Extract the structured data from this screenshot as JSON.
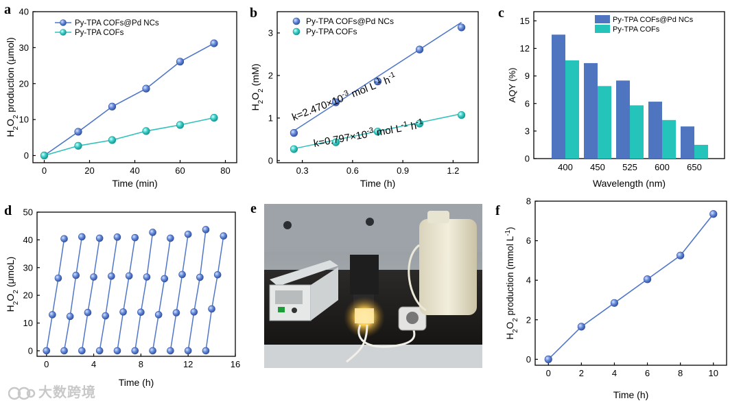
{
  "colors": {
    "pd": "#4f76c9",
    "pdDark": "#3150a0",
    "cof": "#2ec1bc",
    "cofDark": "#179a96",
    "bar_pd": "#4f74c0",
    "bar_cof": "#25c4bb"
  },
  "panels": {
    "a": {
      "letter": "a",
      "xlabel": "Time (min)",
      "ylabel_parts": [
        "H",
        "2",
        "O",
        "2",
        " production (μmol)"
      ],
      "xticks": [
        "0",
        "20",
        "40",
        "60",
        "80"
      ],
      "yticks": [
        "0",
        "10",
        "20",
        "30",
        "40"
      ],
      "xlim": [
        -5,
        85
      ],
      "ylim": [
        -2,
        40
      ],
      "legend": [
        "Py-TPA COFs@Pd NCs",
        "Py-TPA COFs"
      ]
    },
    "b": {
      "letter": "b",
      "xlabel": "Time (h)",
      "ylabel_parts": [
        "H",
        "2",
        "O",
        "2",
        " (mM)"
      ],
      "xticks": [
        "0.3",
        "0.6",
        "0.9",
        "1.2"
      ],
      "yticks": [
        "0",
        "1",
        "2",
        "3"
      ],
      "xlim": [
        0.15,
        1.35
      ],
      "ylim": [
        -0.05,
        3.5
      ],
      "legend": [
        "Py-TPA COFs@Pd NCs",
        "Py-TPA COFs"
      ],
      "ann1": {
        "pre": "k=2.470",
        "times": "×",
        "mid": "10",
        "exp": "-3",
        "unit": " mol L",
        "exp2": "-1",
        "post": " h",
        "exp3": "-1"
      },
      "ann2": {
        "pre": "k=0.797",
        "times": "×",
        "mid": "10",
        "exp": "-3",
        "unit": " mol L",
        "exp2": "-1",
        "post": " h",
        "exp3": "-1"
      }
    },
    "c": {
      "letter": "c",
      "xlabel": "Wavelength (nm)",
      "ylabel": "AQY (%)",
      "yticks": [
        "0",
        "3",
        "6",
        "9",
        "12",
        "15"
      ],
      "ylim": [
        0,
        16
      ],
      "legend": [
        "Py-TPA COFs@Pd NCs",
        "Py-TPA COFs"
      ]
    },
    "d": {
      "letter": "d",
      "xlabel": "Time (h)",
      "ylabel_parts": [
        "H",
        "2",
        "O",
        "2",
        " (μmoL)"
      ],
      "xticks": [
        "0",
        "4",
        "8",
        "12",
        "16"
      ],
      "yticks": [
        "0",
        "10",
        "20",
        "30",
        "40",
        "50"
      ],
      "xlim": [
        -0.8,
        16
      ],
      "ylim": [
        -2,
        50
      ]
    },
    "e": {
      "letter": "e"
    },
    "f": {
      "letter": "f",
      "xlabel": "Time (h)",
      "ylabel_parts": [
        "H",
        "2",
        "O",
        "2",
        " production (mmol L",
        "-1",
        ")"
      ],
      "xticks": [
        "0",
        "2",
        "4",
        "6",
        "8",
        "10"
      ],
      "yticks": [
        "0",
        "2",
        "4",
        "6",
        "8"
      ],
      "xlim": [
        -0.8,
        10.8
      ],
      "ylim": [
        -0.3,
        8
      ]
    }
  },
  "watermark": "大数跨境",
  "chart_data": [
    {
      "panel": "a",
      "type": "line",
      "title": "",
      "xlabel": "Time (min)",
      "ylabel": "H2O2 production (μmol)",
      "x": [
        0,
        15,
        30,
        45,
        60,
        75
      ],
      "series": [
        {
          "name": "Py-TPA COFs@Pd NCs",
          "values": [
            0,
            6.6,
            13.6,
            18.6,
            26.1,
            31.2
          ]
        },
        {
          "name": "Py-TPA COFs",
          "values": [
            0,
            2.7,
            4.3,
            6.8,
            8.5,
            10.5
          ]
        }
      ],
      "xlim": [
        -5,
        85
      ],
      "ylim": [
        -2,
        40
      ]
    },
    {
      "panel": "b",
      "type": "scatter",
      "title": "",
      "xlabel": "Time (h)",
      "ylabel": "H2O2 (mM)",
      "x": [
        0.25,
        0.5,
        0.75,
        1.0,
        1.25
      ],
      "series": [
        {
          "name": "Py-TPA COFs@Pd NCs",
          "values": [
            0.65,
            1.37,
            1.86,
            2.61,
            3.13
          ],
          "fit": [
            [
              0.25,
              0.7
            ],
            [
              1.25,
              3.25
            ]
          ]
        },
        {
          "name": "Py-TPA COFs",
          "values": [
            0.27,
            0.43,
            0.68,
            0.87,
            1.07
          ],
          "fit": [
            [
              0.25,
              0.28
            ],
            [
              1.25,
              1.1
            ]
          ]
        }
      ],
      "xlim": [
        0.15,
        1.35
      ],
      "ylim": [
        -0.05,
        3.5
      ]
    },
    {
      "panel": "c",
      "type": "bar",
      "title": "",
      "xlabel": "Wavelength (nm)",
      "ylabel": "AQY (%)",
      "categories": [
        "400",
        "450",
        "525",
        "600",
        "650"
      ],
      "series": [
        {
          "name": "Py-TPA COFs@Pd NCs",
          "values": [
            13.5,
            10.4,
            8.5,
            6.2,
            3.5
          ]
        },
        {
          "name": "Py-TPA COFs",
          "values": [
            10.7,
            7.9,
            5.8,
            4.2,
            1.5
          ]
        }
      ],
      "ylim": [
        0,
        16
      ]
    },
    {
      "panel": "d",
      "type": "line",
      "title": "",
      "xlabel": "Time (h)",
      "ylabel": "H2O2 (μmoL)",
      "cycles": [
        {
          "x": [
            0,
            0.5,
            1.0,
            1.5
          ],
          "y": [
            0,
            13.0,
            26.2,
            40.4
          ]
        },
        {
          "x": [
            1.5,
            2.0,
            2.5,
            3.0
          ],
          "y": [
            0,
            12.4,
            27.2,
            41.1
          ]
        },
        {
          "x": [
            3.0,
            3.5,
            4.0,
            4.5
          ],
          "y": [
            0,
            13.8,
            26.6,
            40.6
          ]
        },
        {
          "x": [
            4.5,
            5.0,
            5.5,
            6.0
          ],
          "y": [
            0,
            12.6,
            26.9,
            41.0
          ]
        },
        {
          "x": [
            6.0,
            6.5,
            7.0,
            7.5
          ],
          "y": [
            0,
            14.0,
            27.0,
            40.8
          ]
        },
        {
          "x": [
            7.5,
            8.0,
            8.5,
            9.0
          ],
          "y": [
            0,
            13.9,
            26.6,
            42.7
          ]
        },
        {
          "x": [
            9.0,
            9.5,
            10.0,
            10.5
          ],
          "y": [
            0,
            13.0,
            26.0,
            40.6
          ]
        },
        {
          "x": [
            10.5,
            11.0,
            11.5,
            12.0
          ],
          "y": [
            0,
            13.7,
            27.5,
            42.0
          ]
        },
        {
          "x": [
            12.0,
            12.5,
            13.0,
            13.5
          ],
          "y": [
            0,
            14.0,
            26.5,
            43.7
          ]
        },
        {
          "x": [
            13.5,
            14.0,
            14.5,
            15.0
          ],
          "y": [
            0,
            15.1,
            27.4,
            41.4
          ]
        }
      ],
      "xlim": [
        -0.8,
        16
      ],
      "ylim": [
        -2,
        50
      ]
    },
    {
      "panel": "f",
      "type": "line",
      "title": "",
      "xlabel": "Time (h)",
      "ylabel": "H2O2 production (mmol L-1)",
      "x": [
        0,
        2,
        4,
        6,
        8,
        10
      ],
      "series": [
        {
          "name": "H2O2",
          "values": [
            0,
            1.65,
            2.85,
            4.05,
            5.25,
            7.35
          ]
        }
      ],
      "xlim": [
        -0.8,
        10.8
      ],
      "ylim": [
        -0.3,
        8
      ]
    }
  ]
}
